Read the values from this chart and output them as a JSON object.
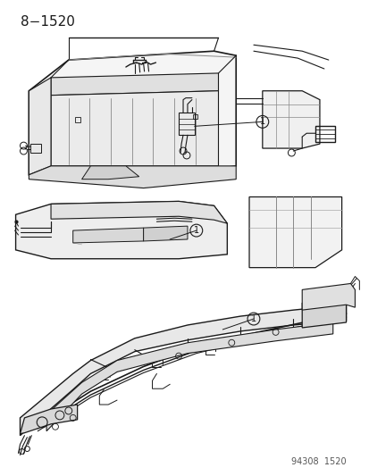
{
  "title": "8−1520",
  "footer": "94308  1520",
  "bg_color": "#ffffff",
  "line_color": "#1a1a1a",
  "gray_color": "#aaaaaa",
  "title_fontsize": 11,
  "footer_fontsize": 7,
  "fig_width": 4.14,
  "fig_height": 5.33,
  "dpi": 100
}
